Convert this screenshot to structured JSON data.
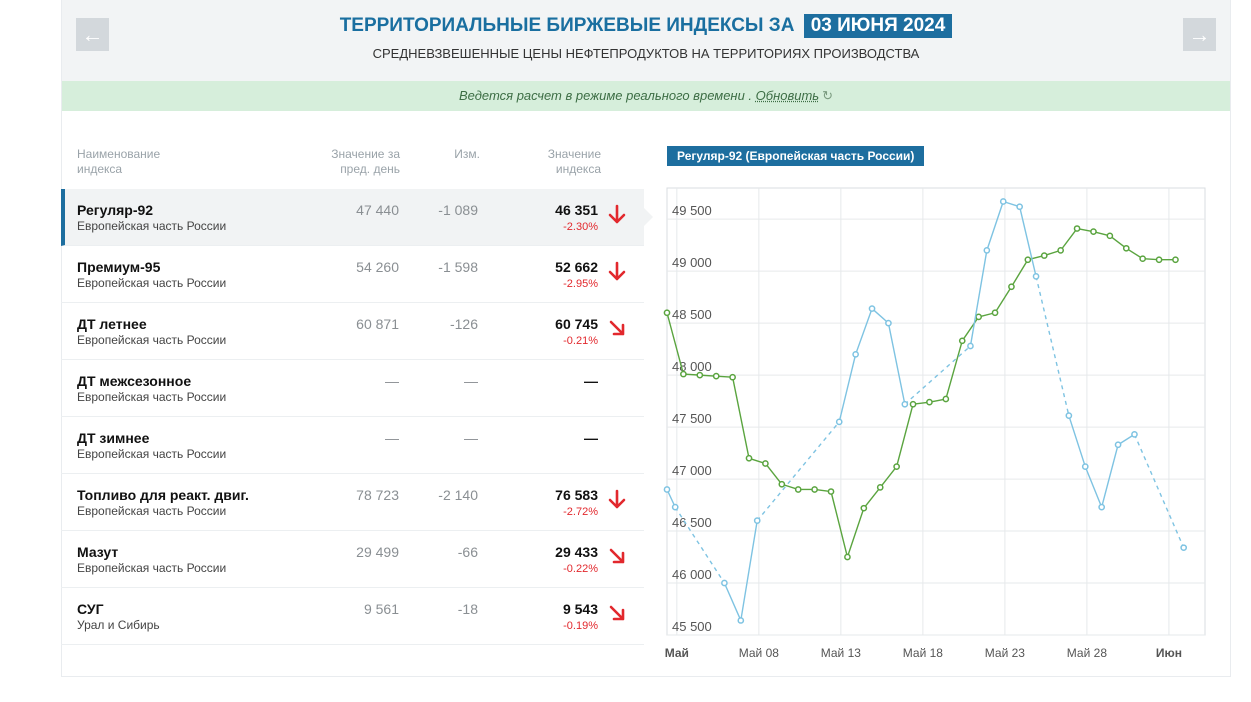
{
  "header": {
    "title": "ТЕРРИТОРИАЛЬНЫЕ БИРЖЕВЫЕ ИНДЕКСЫ ЗА",
    "date": "03 ИЮНЯ 2024",
    "subtitle": "СРЕДНЕВЗВЕШЕННЫЕ ЦЕНЫ НЕФТЕПРОДУКТОВ НА ТЕРРИТОРИЯХ ПРОИЗВОДСТВА",
    "prev_icon": "arrow-left-icon",
    "next_icon": "arrow-right-icon"
  },
  "status": {
    "text": "Ведется расчет в режиме реального времени .",
    "link": "Обновить",
    "icon": "refresh-icon"
  },
  "table": {
    "headers": {
      "name": [
        "Наименование",
        "индекса"
      ],
      "prev": [
        "Значение за",
        "пред. день"
      ],
      "change": "Изм.",
      "value": [
        "Значение",
        "индекса"
      ]
    },
    "rows": [
      {
        "name": "Регуляр-92",
        "region": "Европейская часть России",
        "prev": "47 440",
        "change": "-1 089",
        "value": "46 351",
        "pct": "-2.30%",
        "trend": "down"
      },
      {
        "name": "Премиум-95",
        "region": "Европейская часть России",
        "prev": "54 260",
        "change": "-1 598",
        "value": "52 662",
        "pct": "-2.95%",
        "trend": "down"
      },
      {
        "name": "ДТ летнее",
        "region": "Европейская часть России",
        "prev": "60 871",
        "change": "-126",
        "value": "60 745",
        "pct": "-0.21%",
        "trend": "down-slight"
      },
      {
        "name": "ДТ межсезонное",
        "region": "Европейская часть России",
        "prev": "—",
        "change": "—",
        "value": "—",
        "pct": "",
        "trend": "none"
      },
      {
        "name": "ДТ зимнее",
        "region": "Европейская часть России",
        "prev": "—",
        "change": "—",
        "value": "—",
        "pct": "",
        "trend": "none"
      },
      {
        "name": "Топливо для реакт. двиг.",
        "region": "Европейская часть России",
        "prev": "78 723",
        "change": "-2 140",
        "value": "76 583",
        "pct": "-2.72%",
        "trend": "down"
      },
      {
        "name": "Мазут",
        "region": "Европейская часть России",
        "prev": "29 499",
        "change": "-66",
        "value": "29 433",
        "pct": "-0.22%",
        "trend": "down-slight"
      },
      {
        "name": "СУГ",
        "region": "Урал и Сибирь",
        "prev": "9 561",
        "change": "-18",
        "value": "9 543",
        "pct": "-0.19%",
        "trend": "down-slight"
      }
    ]
  },
  "colors": {
    "accent": "#1d6e9f",
    "down": "#e2282d",
    "series_green": "#5aa43f",
    "series_blue": "#7ec3e2"
  },
  "chart_data": {
    "type": "line",
    "title": "Регуляр-92 (Европейская часть России)",
    "y_ticks": [
      "45 500",
      "46 000",
      "46 500",
      "47 000",
      "47 500",
      "48 000",
      "48 500",
      "49 000",
      "49 500"
    ],
    "ylim": [
      45500,
      49800
    ],
    "x_ticks": [
      "Май",
      "Май 08",
      "Май 13",
      "Май 18",
      "Май 23",
      "Май 28",
      "Июн"
    ],
    "grid": true,
    "series": [
      {
        "color": "green",
        "points": [
          [
            0,
            48600
          ],
          [
            1,
            48010
          ],
          [
            2,
            48000
          ],
          [
            3,
            47990
          ],
          [
            4,
            47980
          ],
          [
            5,
            47200
          ],
          [
            6,
            47150
          ],
          [
            7,
            46950
          ],
          [
            8,
            46900
          ],
          [
            9,
            46900
          ],
          [
            10,
            46880
          ],
          [
            11,
            46250
          ],
          [
            12,
            46720
          ],
          [
            13,
            46920
          ],
          [
            14,
            47120
          ],
          [
            15,
            47720
          ],
          [
            16,
            47740
          ],
          [
            17,
            47770
          ],
          [
            18,
            48330
          ],
          [
            19,
            48560
          ],
          [
            20,
            48600
          ],
          [
            21,
            48850
          ],
          [
            22,
            49110
          ],
          [
            23,
            49150
          ],
          [
            24,
            49200
          ],
          [
            25,
            49410
          ],
          [
            26,
            49380
          ],
          [
            27,
            49340
          ],
          [
            28,
            49220
          ],
          [
            29,
            49120
          ],
          [
            30,
            49110
          ],
          [
            31,
            49110
          ]
        ]
      },
      {
        "color": "blue",
        "points": [
          [
            0,
            46900
          ],
          [
            0.5,
            46730
          ],
          [
            3.5,
            46000
          ],
          [
            4.5,
            45640
          ],
          [
            5.5,
            46600
          ],
          [
            10.5,
            47550
          ],
          [
            11.5,
            48200
          ],
          [
            12.5,
            48640
          ],
          [
            13.5,
            48500
          ],
          [
            14.5,
            47720
          ],
          [
            18.5,
            48280
          ],
          [
            19.5,
            49200
          ],
          [
            20.5,
            49670
          ],
          [
            21.5,
            49620
          ],
          [
            22.5,
            48950
          ],
          [
            24.5,
            47610
          ],
          [
            25.5,
            47120
          ],
          [
            26.5,
            46730
          ],
          [
            27.5,
            47330
          ],
          [
            28.5,
            47430
          ],
          [
            31.5,
            46340
          ]
        ]
      }
    ]
  }
}
